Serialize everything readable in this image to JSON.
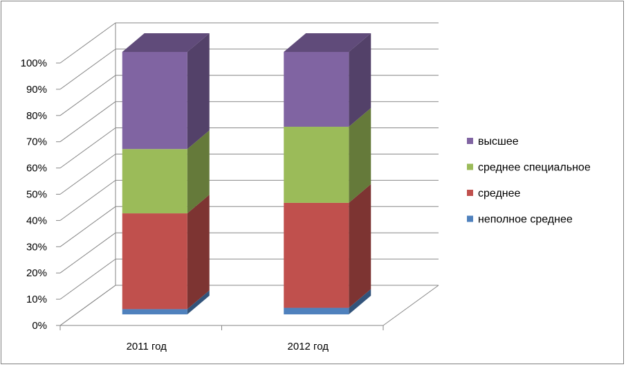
{
  "chart_data": {
    "type": "bar",
    "stacked": "percent",
    "three_d": true,
    "categories": [
      "2011 год",
      "2012 год"
    ],
    "series": [
      {
        "name": "неполное среднее",
        "color": "#4f81bd",
        "values": [
          2,
          2.5
        ]
      },
      {
        "name": "среднее",
        "color": "#c0504d",
        "values": [
          36.5,
          40
        ]
      },
      {
        "name": "среднее специальное",
        "color": "#9bbb59",
        "values": [
          24.5,
          29
        ]
      },
      {
        "name": "высшее",
        "color": "#8064a2",
        "values": [
          37,
          28.5
        ]
      }
    ],
    "y_ticks": [
      "0%",
      "10%",
      "20%",
      "30%",
      "40%",
      "50%",
      "60%",
      "70%",
      "80%",
      "90%",
      "100%"
    ],
    "ylim": [
      0,
      100
    ],
    "grid": true,
    "legend_position": "right"
  }
}
